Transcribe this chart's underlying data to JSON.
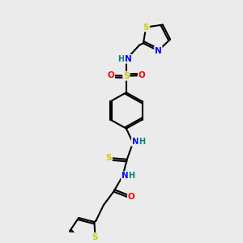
{
  "bg_color": "#ebebeb",
  "bond_color": "#000000",
  "colors": {
    "S": "#cccc00",
    "N": "#0000ff",
    "O": "#ff0000",
    "H": "#008080",
    "C": "#000000"
  }
}
